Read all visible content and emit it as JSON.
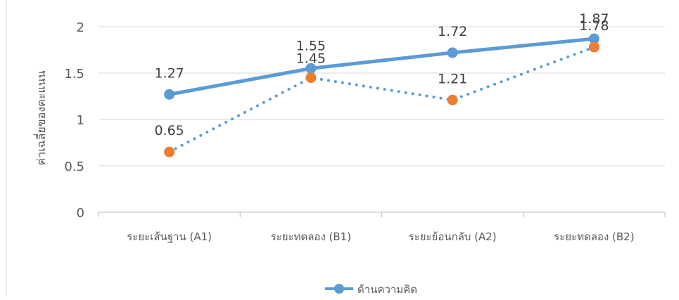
{
  "chart_data": {
    "type": "line",
    "title": "",
    "xlabel": "",
    "ylabel": "ค่าเฉลี่ยของคะแนน",
    "categories": [
      "ระยะเส้นฐาน (A1)",
      "ระยะทดลอง (B1)",
      "ระยะย้อนกลับ (A2)",
      "ระยะทดลอง (B2)"
    ],
    "ylim": [
      0,
      2
    ],
    "yticks": [
      "0",
      "0.5",
      "1",
      "1.5",
      "2"
    ],
    "grid": true,
    "legend_position": "bottom",
    "series": [
      {
        "name": "ด้านความคิด",
        "values": [
          1.27,
          1.55,
          1.72,
          1.87
        ],
        "labels": [
          "1.27",
          "1.55",
          "1.72",
          "1.87"
        ],
        "color": "#5b9bd5",
        "line_style": "solid"
      },
      {
        "values": [
          0.65,
          1.45,
          1.21,
          1.78
        ],
        "labels": [
          "0.65",
          "1.45",
          "1.21",
          "1.78"
        ],
        "color": "#ed7d31",
        "line_color": "#5b9bd5",
        "line_style": "dotted"
      }
    ]
  }
}
